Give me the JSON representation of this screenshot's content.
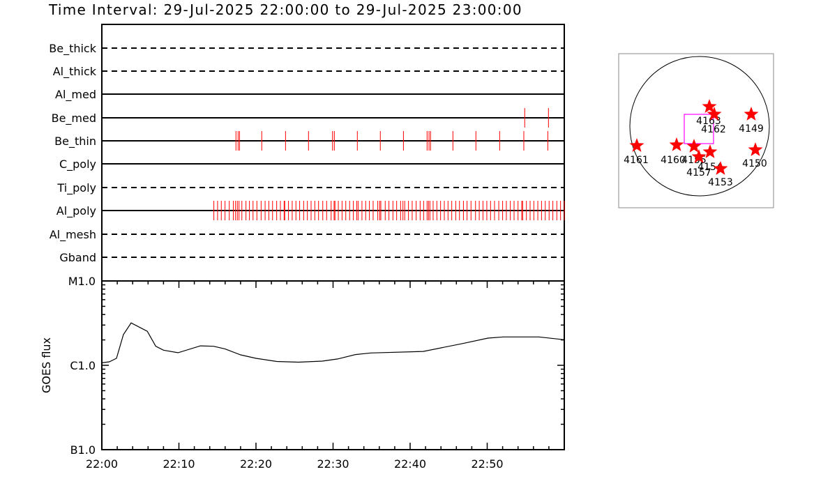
{
  "title": "Time Interval: 29-Jul-2025 22:00:00 to 29-Jul-2025 23:00:00",
  "colors": {
    "event": "#ff0000",
    "axis": "#000000",
    "map_box": "#ff00ff",
    "star": "#ff0000"
  },
  "chart_data": [
    {
      "type": "timeline",
      "x_range": [
        "22:00:00",
        "23:00:00"
      ],
      "rows": [
        {
          "name": "Be_thick",
          "style": "dashed",
          "events": []
        },
        {
          "name": "Al_thick",
          "style": "dashed",
          "events": []
        },
        {
          "name": "Al_med",
          "style": "solid",
          "events": []
        },
        {
          "name": "Be_med",
          "style": "solid",
          "events": [
            "22:54:52",
            "22:57:57"
          ]
        },
        {
          "name": "Be_thin",
          "style": "solid",
          "events": [
            "22:17:24",
            "22:17:41",
            "22:17:52",
            "22:20:45",
            "22:23:50",
            "22:26:49",
            "22:29:56",
            "22:30:10",
            "22:33:09",
            "22:36:08",
            "22:39:08",
            "22:42:12",
            "22:42:27",
            "22:42:39",
            "22:45:33",
            "22:48:32",
            "22:51:37",
            "22:54:45",
            "22:57:52"
          ]
        },
        {
          "name": "C_poly",
          "style": "solid",
          "events": []
        },
        {
          "name": "Ti_poly",
          "style": "dashed",
          "events": []
        },
        {
          "name": "Al_poly",
          "style": "solid",
          "events": [
            "22:14:32",
            "22:15:01",
            "22:15:30",
            "22:15:59",
            "22:16:32",
            "22:17:04",
            "22:17:21",
            "22:17:35",
            "22:17:48",
            "22:18:10",
            "22:18:42",
            "22:19:09",
            "22:19:37",
            "22:20:07",
            "22:20:40",
            "22:21:11",
            "22:21:40",
            "22:22:09",
            "22:22:41",
            "22:23:10",
            "22:23:39",
            "22:23:44",
            "22:24:13",
            "22:24:42",
            "22:25:11",
            "22:25:40",
            "22:26:11",
            "22:26:40",
            "22:27:09",
            "22:27:38",
            "22:28:07",
            "22:28:40",
            "22:29:10",
            "22:29:45",
            "22:30:08",
            "22:30:15",
            "22:30:41",
            "22:31:10",
            "22:31:39",
            "22:32:09",
            "22:32:38",
            "22:33:04",
            "22:33:15",
            "22:33:45",
            "22:34:14",
            "22:34:43",
            "22:35:12",
            "22:35:48",
            "22:36:03",
            "22:36:12",
            "22:36:46",
            "22:37:15",
            "22:37:46",
            "22:38:15",
            "22:38:46",
            "22:39:04",
            "22:39:18",
            "22:39:47",
            "22:40:16",
            "22:40:47",
            "22:41:18",
            "22:41:45",
            "22:42:12",
            "22:42:23",
            "22:42:34",
            "22:42:59",
            "22:43:28",
            "22:43:57",
            "22:44:26",
            "22:44:55",
            "22:45:24",
            "22:45:55",
            "22:46:24",
            "22:46:55",
            "22:47:23",
            "22:47:54",
            "22:48:29",
            "22:48:58",
            "22:49:27",
            "22:49:57",
            "22:50:26",
            "22:50:57",
            "22:51:30",
            "22:52:00",
            "22:52:29",
            "22:53:00",
            "22:53:29",
            "22:54:00",
            "22:54:29",
            "22:54:36",
            "22:55:05",
            "22:55:34",
            "22:56:03",
            "22:56:34",
            "22:57:03",
            "22:57:32",
            "22:58:02",
            "22:58:31",
            "22:59:02",
            "22:59:31",
            "23:00:00"
          ]
        },
        {
          "name": "Al_mesh",
          "style": "dashed",
          "events": []
        },
        {
          "name": "Gband",
          "style": "dashed",
          "events": []
        }
      ]
    },
    {
      "type": "line",
      "ylabel": "GOES flux",
      "y_scale": "log",
      "ylim": [
        1e-07,
        1e-05
      ],
      "y_ticks": [
        {
          "label": "B1.0",
          "value": 1e-07
        },
        {
          "label": "C1.0",
          "value": 1e-06
        },
        {
          "label": "M1.0",
          "value": 1e-05
        }
      ],
      "x_ticks": [
        "22:00",
        "22:10",
        "22:20",
        "22:30",
        "22:40",
        "22:50"
      ],
      "x_range": [
        "22:00:00",
        "23:00:00"
      ],
      "x": [
        "22:00:00",
        "22:00:58",
        "22:01:54",
        "22:02:48",
        "22:03:48",
        "22:05:54",
        "22:07:00",
        "22:08:00",
        "22:09:54",
        "22:12:48",
        "22:14:30",
        "22:16:00",
        "22:18:00",
        "22:20:00",
        "22:22:42",
        "22:25:30",
        "22:28:36",
        "22:30:36",
        "22:32:54",
        "22:34:54",
        "22:41:42",
        "22:46:48",
        "22:50:06",
        "22:52:06",
        "22:56:42",
        "23:00:00"
      ],
      "y": [
        1.07e-06,
        1.1e-06,
        1.21e-06,
        2.31e-06,
        3.18e-06,
        2.53e-06,
        1.68e-06,
        1.51e-06,
        1.41e-06,
        1.7e-06,
        1.68e-06,
        1.56e-06,
        1.33e-06,
        1.21e-06,
        1.11e-06,
        1.09e-06,
        1.12e-06,
        1.19e-06,
        1.34e-06,
        1.4e-06,
        1.46e-06,
        1.81e-06,
        2.1e-06,
        2.17e-06,
        2.17e-06,
        2.01e-06
      ]
    }
  ],
  "map": {
    "active_regions": [
      "4163",
      "4162",
      "4149",
      "4161",
      "4160",
      "4155",
      "4157",
      "4154",
      "4153",
      "4150"
    ]
  }
}
